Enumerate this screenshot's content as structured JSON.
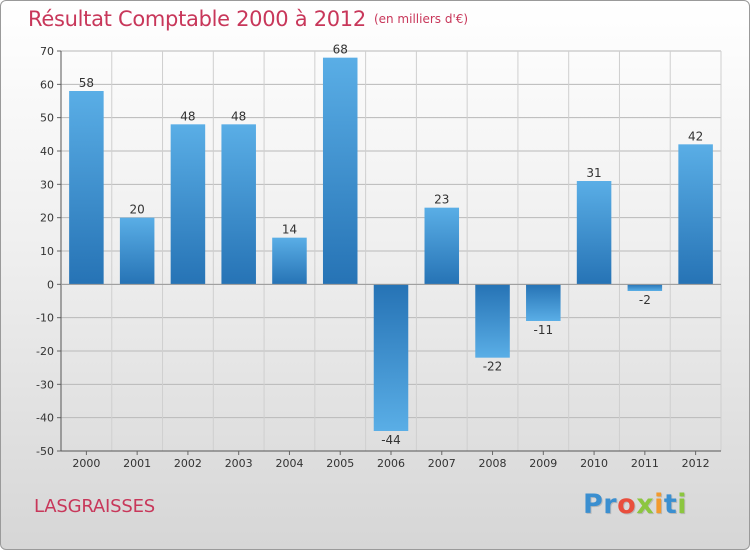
{
  "chart_data": {
    "type": "bar",
    "title": "Résultat Comptable 2000 à 2012",
    "subtitle": "(en milliers d'€)",
    "categories": [
      "2000",
      "2001",
      "2002",
      "2003",
      "2004",
      "2005",
      "2006",
      "2007",
      "2008",
      "2009",
      "2010",
      "2011",
      "2012"
    ],
    "values": [
      58,
      20,
      48,
      48,
      14,
      68,
      -44,
      23,
      -22,
      -11,
      31,
      -2,
      42
    ],
    "ylim": [
      -50,
      70
    ],
    "yticks": [
      -50,
      -40,
      -30,
      -20,
      -10,
      0,
      10,
      20,
      30,
      40,
      50,
      60,
      70
    ],
    "xlabel": "",
    "ylabel": "",
    "grid": true,
    "colors": {
      "bar_light": "#5aaee6",
      "bar_dark": "#2673b5",
      "title": "#c8375a"
    }
  },
  "commune": "LASGRAISSES",
  "logo": {
    "letters": [
      "P",
      "r",
      "o",
      "x",
      "i",
      "t",
      "i"
    ],
    "colors": [
      "#3b8fd0",
      "#3b8fd0",
      "#e94e3d",
      "#8cc63f",
      "#f29a2e",
      "#3b8fd0",
      "#8cc63f"
    ]
  }
}
